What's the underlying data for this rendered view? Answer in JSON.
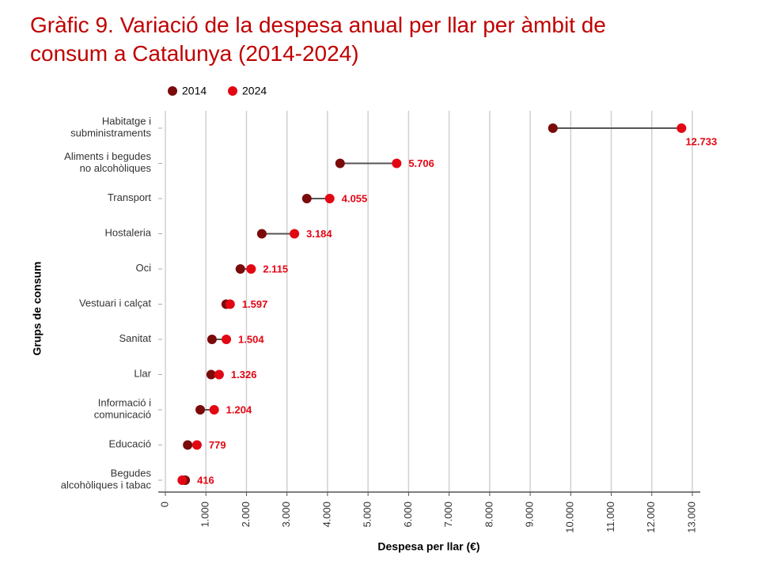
{
  "chart_data": {
    "type": "dumbbell",
    "title": "Gràfic 9. Variació de la despesa anual per llar per àmbit de consum a Catalunya (2014-2024)",
    "x_label": "Despesa per llar (€)",
    "y_label": "Grups de consum",
    "categories": [
      "Habitatge i\nsubministraments",
      "Aliments i begudes\nno alcohòliques",
      "Transport",
      "Hostaleria",
      "Oci",
      "Vestuari i calçat",
      "Sanitat",
      "Llar",
      "Informació i\ncomunicació",
      "Educació",
      "Begudes\nalcohòliques i tabac"
    ],
    "series": [
      {
        "name": "2014",
        "color": "#7b0a0a",
        "values": [
          9560,
          4310,
          3490,
          2380,
          1850,
          1500,
          1150,
          1130,
          860,
          550,
          490
        ]
      },
      {
        "name": "2024",
        "color": "#e30613",
        "values": [
          12733,
          5706,
          4055,
          3184,
          2115,
          1597,
          1504,
          1326,
          1204,
          779,
          416
        ],
        "value_labels": [
          "12.733",
          "5.706",
          "4.055",
          "3.184",
          "2.115",
          "1.597",
          "1.504",
          "1.326",
          "1.204",
          "779",
          "416"
        ]
      }
    ],
    "xlim": [
      0,
      13000
    ],
    "xticks": [
      0,
      {
        "value": 1000,
        "label": "1.000"
      },
      {
        "value": 2000,
        "label": "2.000"
      },
      {
        "value": 3000,
        "label": "3.000"
      },
      {
        "value": 4000,
        "label": "4.000"
      },
      {
        "value": 5000,
        "label": "5.000"
      },
      {
        "value": 6000,
        "label": "6.000"
      },
      {
        "value": 7000,
        "label": "7.000"
      },
      {
        "value": 8000,
        "label": "8.000"
      },
      {
        "value": 9000,
        "label": "9.000"
      },
      {
        "value": 10000,
        "label": "10.000"
      },
      {
        "value": 11000,
        "label": "11.000"
      },
      {
        "value": 12000,
        "label": "12.000"
      },
      {
        "value": 13000,
        "label": "13.000"
      }
    ],
    "grid": true,
    "legend": "top"
  }
}
